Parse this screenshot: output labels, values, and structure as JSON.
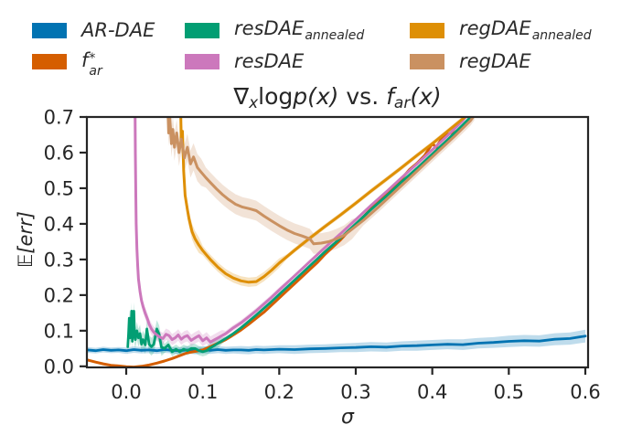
{
  "legend": {
    "items": [
      {
        "label": "AR-DAE",
        "pre": "AR-DAE",
        "sup": "",
        "sub": "",
        "color": "#0173b2"
      },
      {
        "label": "f*_ar",
        "pre": "f",
        "sup": "*",
        "sub": "ar",
        "color": "#d55e00"
      },
      {
        "label": "resDAE_annealed",
        "pre": "resDAE",
        "sup": "",
        "sub": "annealed",
        "color": "#029e73"
      },
      {
        "label": "resDAE",
        "pre": "resDAE",
        "sup": "",
        "sub": "",
        "color": "#cc78bc"
      },
      {
        "label": "regDAE_annealed",
        "pre": "regDAE",
        "sup": "",
        "sub": "annealed",
        "color": "#de8f05"
      },
      {
        "label": "regDAE",
        "pre": "regDAE",
        "sup": "",
        "sub": "",
        "color": "#ca9161"
      }
    ]
  },
  "title": {
    "p1": "∇",
    "p2": "x",
    "p3": "log",
    "p4": "p(x)",
    "p5": " vs. ",
    "p6": "f",
    "p7": "ar",
    "p8": "(x)"
  },
  "chart_data": {
    "type": "line",
    "title": "∇_x log p(x) vs. f_ar(x)",
    "xlabel": "σ",
    "ylabel": "𝔼[err]",
    "xlim": [
      -0.0514,
      0.6036
    ],
    "ylim": [
      -0.003,
      0.7
    ],
    "grid": false,
    "legend_position": "top",
    "xticks": {
      "values": [
        0.0,
        0.1,
        0.2,
        0.3,
        0.4,
        0.5,
        0.6
      ],
      "labels": [
        "0.0",
        "0.1",
        "0.2",
        "0.3",
        "0.4",
        "0.5",
        "0.6"
      ]
    },
    "yticks": {
      "values": [
        0.0,
        0.1,
        0.2,
        0.3,
        0.4,
        0.5,
        0.6,
        0.7
      ],
      "labels": [
        "0.0",
        "0.1",
        "0.2",
        "0.3",
        "0.4",
        "0.5",
        "0.6",
        "0.7"
      ]
    },
    "series": [
      {
        "name": "AR-DAE",
        "color": "#0173b2",
        "lw": 2.8,
        "x": [
          -0.051,
          -0.04,
          -0.03,
          -0.02,
          -0.01,
          0,
          0.01,
          0.02,
          0.03,
          0.04,
          0.05,
          0.06,
          0.07,
          0.08,
          0.09,
          0.1,
          0.11,
          0.12,
          0.13,
          0.14,
          0.15,
          0.16,
          0.17,
          0.18,
          0.19,
          0.2,
          0.22,
          0.24,
          0.26,
          0.28,
          0.3,
          0.32,
          0.34,
          0.36,
          0.38,
          0.4,
          0.42,
          0.44,
          0.46,
          0.48,
          0.5,
          0.52,
          0.54,
          0.56,
          0.58,
          0.6
        ],
        "y": [
          0.046,
          0.044,
          0.047,
          0.045,
          0.046,
          0.044,
          0.047,
          0.045,
          0.046,
          0.044,
          0.047,
          0.045,
          0.044,
          0.046,
          0.044,
          0.046,
          0.045,
          0.047,
          0.045,
          0.046,
          0.046,
          0.045,
          0.047,
          0.046,
          0.047,
          0.048,
          0.047,
          0.049,
          0.05,
          0.052,
          0.053,
          0.055,
          0.054,
          0.057,
          0.058,
          0.06,
          0.062,
          0.061,
          0.065,
          0.067,
          0.07,
          0.072,
          0.071,
          0.076,
          0.078,
          0.085
        ],
        "hw": [
          0.008,
          0.008,
          0.008,
          0.008,
          0.008,
          0.009,
          0.009,
          0.009,
          0.009,
          0.009,
          0.009,
          0.009,
          0.009,
          0.01,
          0.01,
          0.01,
          0.01,
          0.01,
          0.01,
          0.01,
          0.011,
          0.011,
          0.011,
          0.011,
          0.011,
          0.011,
          0.012,
          0.012,
          0.012,
          0.012,
          0.013,
          0.013,
          0.013,
          0.013,
          0.014,
          0.014,
          0.014,
          0.015,
          0.015,
          0.015,
          0.016,
          0.016,
          0.016,
          0.017,
          0.017,
          0.018
        ]
      },
      {
        "name": "f*_ar",
        "color": "#d55e00",
        "lw": 3,
        "x": [
          -0.051,
          -0.04,
          -0.03,
          -0.02,
          -0.01,
          0,
          0.01,
          0.02,
          0.03,
          0.04,
          0.05,
          0.06,
          0.07,
          0.08,
          0.09,
          0.1,
          0.11,
          0.12,
          0.13,
          0.14,
          0.15,
          0.16,
          0.17,
          0.18,
          0.19,
          0.2,
          0.21,
          0.22,
          0.23,
          0.24,
          0.25,
          0.26,
          0.27,
          0.28,
          0.29,
          0.3,
          0.31,
          0.32,
          0.33,
          0.34,
          0.35,
          0.36,
          0.37,
          0.38,
          0.39,
          0.4,
          0.405,
          0.415,
          0.425,
          0.435,
          0.445,
          0.45
        ],
        "y": [
          0.018,
          0.012,
          0.007,
          0.003,
          0.001,
          -0.001,
          -0.002,
          0,
          0.004,
          0.009,
          0.015,
          0.022,
          0.03,
          0.038,
          0.042,
          0.046,
          0.055,
          0.065,
          0.075,
          0.088,
          0.102,
          0.118,
          0.135,
          0.152,
          0.172,
          0.192,
          0.212,
          0.232,
          0.252,
          0.272,
          0.292,
          0.315,
          0.335,
          0.355,
          0.378,
          0.398,
          0.42,
          0.442,
          0.465,
          0.487,
          0.507,
          0.527,
          0.552,
          0.57,
          0.592,
          0.625,
          0.615,
          0.648,
          0.655,
          0.685,
          0.702,
          0.71
        ],
        "hw": []
      },
      {
        "name": "resDAE_annealed",
        "color": "#029e73",
        "lw": 2.8,
        "x": [
          0.002,
          0.003,
          0.004,
          0.005,
          0.006,
          0.007,
          0.008,
          0.009,
          0.01,
          0.011,
          0.012,
          0.014,
          0.016,
          0.018,
          0.02,
          0.022,
          0.025,
          0.027,
          0.03,
          0.033,
          0.036,
          0.04,
          0.043,
          0.046,
          0.05,
          0.055,
          0.06,
          0.065,
          0.07,
          0.075,
          0.08,
          0.085,
          0.09,
          0.095,
          0.1,
          0.105,
          0.11,
          0.115,
          0.12,
          0.13,
          0.14,
          0.15,
          0.16,
          0.17,
          0.18,
          0.19,
          0.2,
          0.22,
          0.24,
          0.26,
          0.28,
          0.3,
          0.32,
          0.34,
          0.36,
          0.38,
          0.4,
          0.42,
          0.44,
          0.45
        ],
        "y": [
          0.055,
          0.09,
          0.135,
          0.08,
          0.1,
          0.155,
          0.07,
          0.12,
          0.155,
          0.085,
          0.075,
          0.1,
          0.08,
          0.092,
          0.062,
          0.075,
          0.06,
          0.105,
          0.062,
          0.055,
          0.062,
          0.105,
          0.09,
          0.054,
          0.05,
          0.06,
          0.041,
          0.048,
          0.041,
          0.048,
          0.044,
          0.05,
          0.05,
          0.044,
          0.041,
          0.044,
          0.052,
          0.058,
          0.065,
          0.078,
          0.092,
          0.108,
          0.126,
          0.144,
          0.163,
          0.182,
          0.202,
          0.242,
          0.282,
          0.322,
          0.36,
          0.4,
          0.44,
          0.478,
          0.518,
          0.556,
          0.596,
          0.636,
          0.678,
          0.7
        ],
        "hw": [
          0.025,
          0.025,
          0.025,
          0.025,
          0.025,
          0.025,
          0.025,
          0.025,
          0.025,
          0.025,
          0.025,
          0.025,
          0.025,
          0.025,
          0.025,
          0.025,
          0.025,
          0.025,
          0.025,
          0.025,
          0.025,
          0.025,
          0.025,
          0.025,
          0.013,
          0.013,
          0.013,
          0.013,
          0.013,
          0.013,
          0.013,
          0.013,
          0.013,
          0.013,
          0.013,
          0.013,
          0.013,
          0.013,
          0.013,
          0.005,
          0.005,
          0.005,
          0.005,
          0.005,
          0.005,
          0.005,
          0.005,
          0.005,
          0.005,
          0.005,
          0.005,
          0.005,
          0.005,
          0.005,
          0.005,
          0.005,
          0.005,
          0.005,
          0.005,
          0.005
        ]
      },
      {
        "name": "resDAE",
        "color": "#cc78bc",
        "lw": 3,
        "x": [
          0.0115,
          0.012,
          0.0125,
          0.013,
          0.014,
          0.015,
          0.016,
          0.018,
          0.02,
          0.022,
          0.025,
          0.028,
          0.03,
          0.033,
          0.036,
          0.04,
          0.044,
          0.048,
          0.052,
          0.056,
          0.06,
          0.064,
          0.068,
          0.072,
          0.076,
          0.08,
          0.085,
          0.09,
          0.095,
          0.1,
          0.105,
          0.11,
          0.115,
          0.12,
          0.125,
          0.13,
          0.135,
          0.14,
          0.15,
          0.16,
          0.17,
          0.18,
          0.19,
          0.2,
          0.22,
          0.24,
          0.26,
          0.28,
          0.3,
          0.32,
          0.34,
          0.36,
          0.38,
          0.4,
          0.42,
          0.44,
          0.445
        ],
        "y": [
          0.75,
          0.6,
          0.48,
          0.4,
          0.33,
          0.28,
          0.245,
          0.21,
          0.185,
          0.168,
          0.148,
          0.132,
          0.118,
          0.105,
          0.096,
          0.088,
          0.082,
          0.078,
          0.09,
          0.086,
          0.075,
          0.08,
          0.088,
          0.076,
          0.083,
          0.086,
          0.073,
          0.08,
          0.086,
          0.072,
          0.08,
          0.068,
          0.074,
          0.08,
          0.086,
          0.092,
          0.1,
          0.108,
          0.122,
          0.139,
          0.156,
          0.175,
          0.194,
          0.214,
          0.254,
          0.294,
          0.334,
          0.372,
          0.412,
          0.452,
          0.49,
          0.53,
          0.568,
          0.608,
          0.648,
          0.69,
          0.705
        ],
        "hw": [
          0.02,
          0.02,
          0.02,
          0.02,
          0.02,
          0.02,
          0.02,
          0.02,
          0.016,
          0.016,
          0.016,
          0.016,
          0.016,
          0.016,
          0.016,
          0.016,
          0.016,
          0.016,
          0.016,
          0.016,
          0.016,
          0.016,
          0.016,
          0.016,
          0.016,
          0.016,
          0.016,
          0.016,
          0.016,
          0.016,
          0.016,
          0.016,
          0.016,
          0.016,
          0.016,
          0.008,
          0.008,
          0.008,
          0.008,
          0.008,
          0.008,
          0.008,
          0.008,
          0.008,
          0.004,
          0.004,
          0.004,
          0.004,
          0.004,
          0.004,
          0.004,
          0.004,
          0.004,
          0.004,
          0.004,
          0.004,
          0.004
        ]
      },
      {
        "name": "regDAE_annealed",
        "color": "#de8f05",
        "lw": 3,
        "x": [
          0.071,
          0.072,
          0.0735,
          0.075,
          0.077,
          0.08,
          0.082,
          0.086,
          0.09,
          0.095,
          0.1,
          0.105,
          0.11,
          0.12,
          0.13,
          0.14,
          0.15,
          0.16,
          0.17,
          0.18,
          0.19,
          0.2,
          0.21,
          0.22,
          0.24,
          0.26,
          0.28,
          0.3,
          0.32,
          0.34,
          0.36,
          0.38,
          0.4,
          0.42,
          0.44,
          0.445
        ],
        "y": [
          0.75,
          0.62,
          0.66,
          0.55,
          0.48,
          0.44,
          0.415,
          0.378,
          0.358,
          0.34,
          0.325,
          0.312,
          0.3,
          0.278,
          0.26,
          0.248,
          0.24,
          0.236,
          0.238,
          0.252,
          0.27,
          0.29,
          0.308,
          0.326,
          0.36,
          0.393,
          0.425,
          0.458,
          0.492,
          0.525,
          0.558,
          0.592,
          0.625,
          0.66,
          0.695,
          0.705
        ],
        "hw": [
          0.022,
          0.022,
          0.022,
          0.022,
          0.022,
          0.022,
          0.022,
          0.022,
          0.022,
          0.022,
          0.013,
          0.013,
          0.013,
          0.013,
          0.013,
          0.013,
          0.013,
          0.013,
          0.013,
          0.013,
          0.013,
          0.013,
          0.007,
          0.007,
          0.007,
          0.007,
          0.007,
          0.007,
          0.007,
          0.007,
          0.007,
          0.007,
          0.007,
          0.007,
          0.007,
          0.007
        ]
      },
      {
        "name": "regDAE",
        "color": "#ca9161",
        "lw": 3,
        "x": [
          0.054,
          0.0555,
          0.057,
          0.059,
          0.061,
          0.063,
          0.066,
          0.069,
          0.072,
          0.076,
          0.08,
          0.084,
          0.088,
          0.093,
          0.098,
          0.104,
          0.11,
          0.118,
          0.126,
          0.134,
          0.143,
          0.152,
          0.162,
          0.17,
          0.18,
          0.19,
          0.2,
          0.21,
          0.22,
          0.23,
          0.24,
          0.245,
          0.255,
          0.265,
          0.275,
          0.285,
          0.295,
          0.31,
          0.33,
          0.35,
          0.37,
          0.39,
          0.41,
          0.43,
          0.45,
          0.455
        ],
        "y": [
          0.75,
          0.655,
          0.7,
          0.625,
          0.665,
          0.615,
          0.655,
          0.6,
          0.638,
          0.585,
          0.615,
          0.568,
          0.588,
          0.558,
          0.545,
          0.53,
          0.516,
          0.498,
          0.482,
          0.468,
          0.455,
          0.447,
          0.442,
          0.437,
          0.422,
          0.408,
          0.395,
          0.383,
          0.373,
          0.366,
          0.358,
          0.344,
          0.346,
          0.35,
          0.358,
          0.368,
          0.385,
          0.41,
          0.448,
          0.488,
          0.528,
          0.568,
          0.608,
          0.648,
          0.69,
          0.705
        ],
        "hw": [
          0.038,
          0.038,
          0.038,
          0.038,
          0.038,
          0.038,
          0.038,
          0.038,
          0.038,
          0.038,
          0.038,
          0.038,
          0.038,
          0.038,
          0.038,
          0.028,
          0.028,
          0.028,
          0.028,
          0.028,
          0.028,
          0.028,
          0.028,
          0.028,
          0.028,
          0.028,
          0.028,
          0.028,
          0.028,
          0.028,
          0.028,
          0.028,
          0.028,
          0.028,
          0.028,
          0.028,
          0.028,
          0.014,
          0.014,
          0.014,
          0.014,
          0.014,
          0.014,
          0.014,
          0.014,
          0.014
        ]
      }
    ],
    "style": {
      "spine_color": "#262626",
      "tick_color": "#262626",
      "tick_label_size": 21,
      "band_opacity": 0.25
    }
  }
}
